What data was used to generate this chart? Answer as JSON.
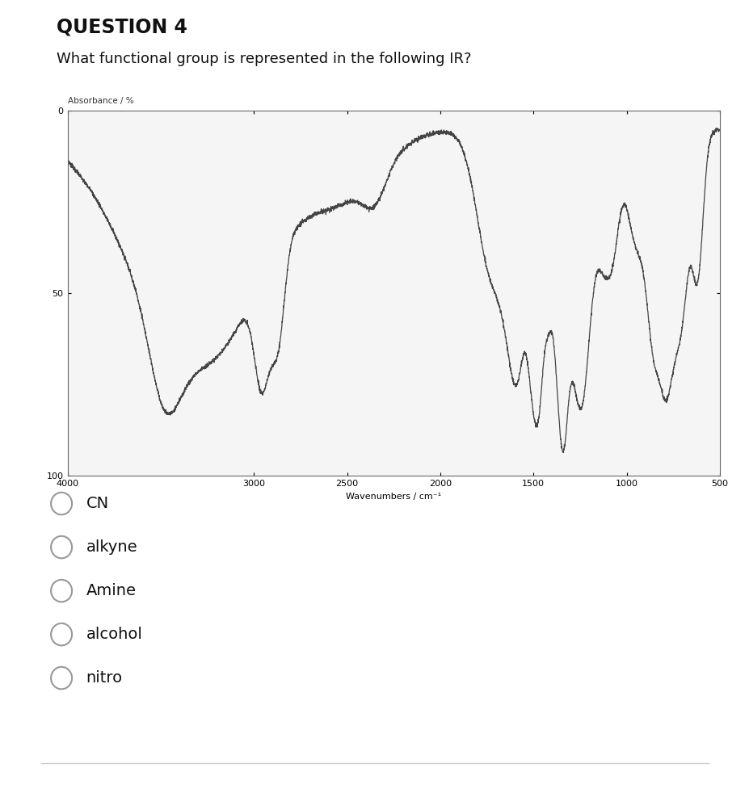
{
  "title": "QUESTION 4",
  "question_text": "What functional group is represented in the following IR?",
  "ir_ylabel": "Absorbance / %",
  "ir_xlabel": "Wavenumbers / cm⁻¹",
  "x_ticks": [
    4000,
    3000,
    2500,
    2000,
    1500,
    1000,
    500
  ],
  "x_tick_labels": [
    "4000",
    "3000",
    "2500",
    "2000",
    "1500",
    "1000",
    "500"
  ],
  "y_tick_labels": [
    "0",
    "50",
    "100"
  ],
  "bg_color": "#ffffff",
  "plot_bg": "#f5f5f5",
  "line_color": "#444444",
  "options": [
    "CN",
    "alkyne",
    "Amine",
    "alcohol",
    "nitro"
  ],
  "option_fontsize": 14,
  "title_fontsize": 17,
  "question_fontsize": 13
}
